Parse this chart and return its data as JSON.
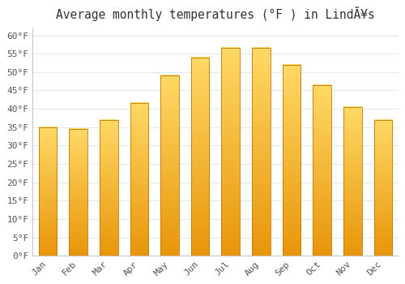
{
  "title": "Average monthly temperatures (°F ) in LindÃ¥s",
  "months": [
    "Jan",
    "Feb",
    "Mar",
    "Apr",
    "May",
    "Jun",
    "Jul",
    "Aug",
    "Sep",
    "Oct",
    "Nov",
    "Dec"
  ],
  "values": [
    34.9,
    34.5,
    37.0,
    41.5,
    49.0,
    54.0,
    56.5,
    56.5,
    52.0,
    46.5,
    40.5,
    37.0
  ],
  "bar_color_top": "#FFD966",
  "bar_color_bottom": "#E8960A",
  "bar_edge_color": "#C07800",
  "background_color": "#FFFFFF",
  "plot_bg_color": "#FFFFFF",
  "grid_color": "#E0E8F0",
  "ylim": [
    0,
    62
  ],
  "yticks": [
    0,
    5,
    10,
    15,
    20,
    25,
    30,
    35,
    40,
    45,
    50,
    55,
    60
  ],
  "tick_fontsize": 8,
  "title_fontsize": 10.5,
  "bar_width": 0.6
}
